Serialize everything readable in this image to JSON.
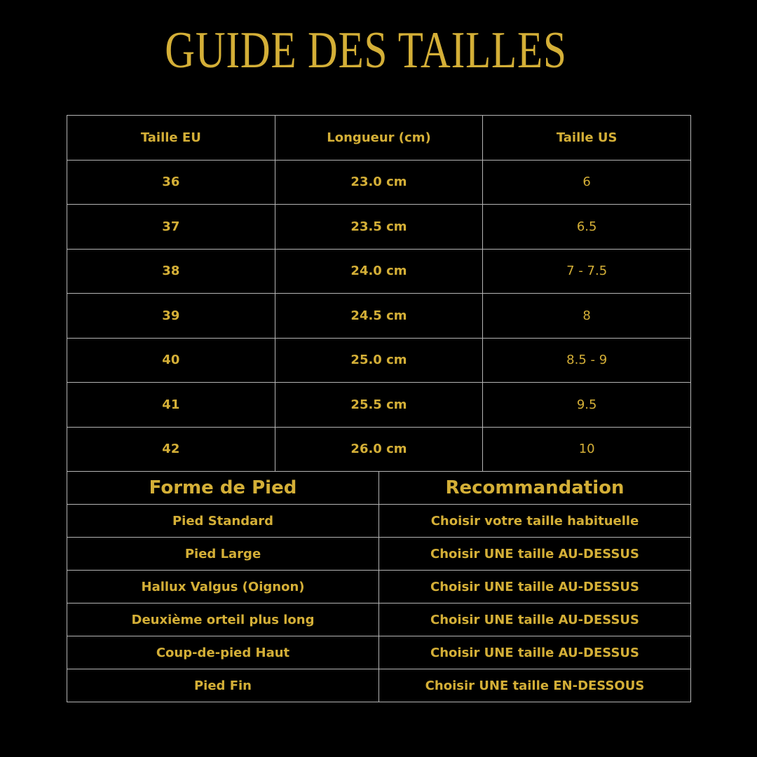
{
  "title": "GUIDE DES TAILLES",
  "accent_color": "#d4af37",
  "size_table": {
    "headers": [
      "Taille EU",
      "Longueur (cm)",
      "Taille US"
    ],
    "rows": [
      [
        "36",
        "23.0 cm",
        "6"
      ],
      [
        "37",
        "23.5 cm",
        "6.5"
      ],
      [
        "38",
        "24.0 cm",
        "7 - 7.5"
      ],
      [
        "39",
        "24.5 cm",
        "8"
      ],
      [
        "40",
        "25.0 cm",
        "8.5 - 9"
      ],
      [
        "41",
        "25.5 cm",
        "9.5"
      ],
      [
        "42",
        "26.0 cm",
        "10"
      ]
    ]
  },
  "foot_table": {
    "headers": [
      "Forme de Pied",
      "Recommandation"
    ],
    "rows": [
      [
        "Pied Standard",
        "Choisir votre taille habituelle"
      ],
      [
        "Pied Large",
        "Choisir UNE taille AU-DESSUS"
      ],
      [
        "Hallux Valgus (Oignon)",
        "Choisir UNE taille AU-DESSUS"
      ],
      [
        "Deuxième orteil plus long",
        "Choisir UNE taille AU-DESSUS"
      ],
      [
        "Coup-de-pied Haut",
        "Choisir UNE taille AU-DESSUS"
      ],
      [
        "Pied Fin",
        "Choisir UNE taille EN-DESSOUS"
      ]
    ]
  }
}
